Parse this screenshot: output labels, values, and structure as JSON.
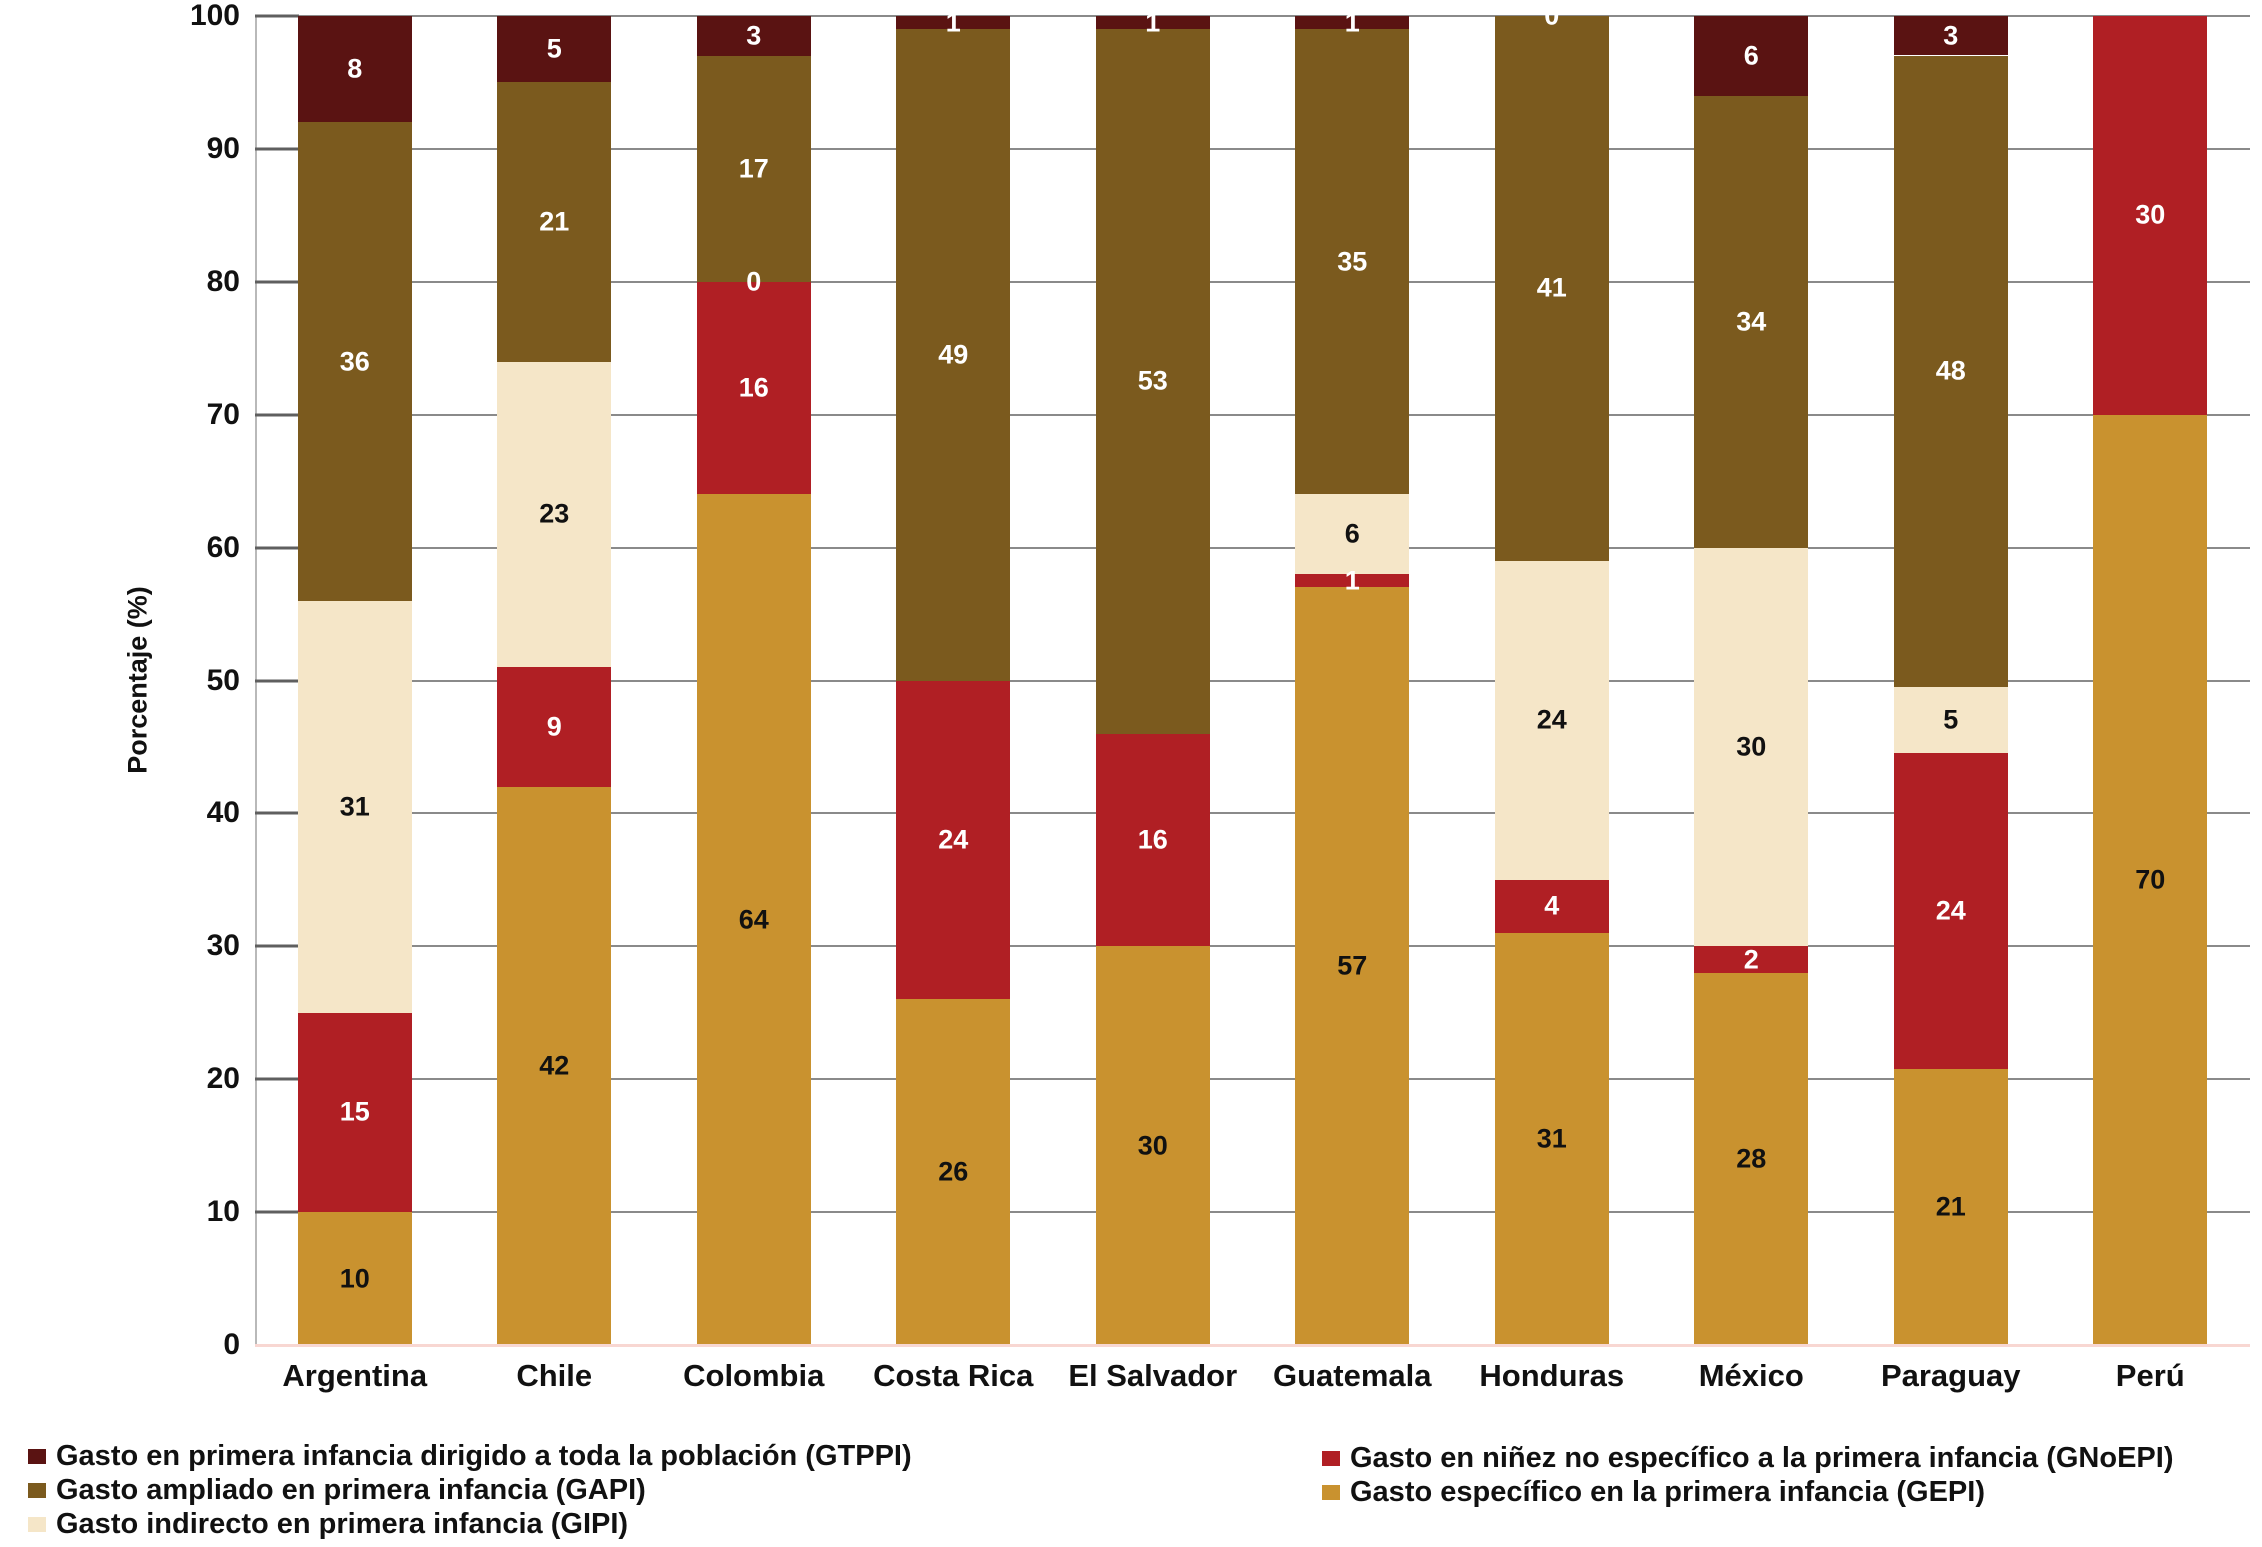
{
  "chart_data": {
    "type": "bar",
    "stacked": true,
    "orientation": "vertical",
    "title": "",
    "xlabel": "",
    "ylabel": "Porcentaje (%)",
    "ylim": [
      0,
      100
    ],
    "yticks": [
      0,
      10,
      20,
      30,
      40,
      50,
      60,
      70,
      80,
      90,
      100
    ],
    "grid": "horizontal",
    "legend_position": "bottom",
    "categories": [
      "Argentina",
      "Chile",
      "Colombia",
      "Costa Rica",
      "El Salvador",
      "Guatemala",
      "Honduras",
      "México",
      "Paraguay",
      "Perú"
    ],
    "stack_order_bottom_to_top": [
      "GEPI",
      "GNoEPI",
      "GIPI",
      "GAPI",
      "GTPPI"
    ],
    "series": [
      {
        "key": "GEPI",
        "name": "Gasto específico en la primera infancia (GEPI)",
        "color": "#C9922F",
        "label_color": "#111111",
        "values": [
          10,
          42,
          64,
          26,
          30,
          57,
          31,
          28,
          21,
          70
        ],
        "labels": [
          "10",
          "42",
          "64",
          "26",
          "30",
          "57",
          "31",
          "28",
          "21",
          "70"
        ]
      },
      {
        "key": "GNoEPI",
        "name": "Gasto en niñez no específico a la primera infancia (GNoEPI)",
        "color": "#B01F24",
        "label_color": "#ffffff",
        "values": [
          15,
          9,
          16,
          24,
          16,
          1,
          4,
          2,
          24,
          30
        ],
        "labels": [
          "15",
          "9",
          "16",
          "24",
          "16",
          "1",
          "4",
          "2",
          "24",
          "30"
        ]
      },
      {
        "key": "GIPI",
        "name": "Gasto indirecto en primera infancia (GIPI)",
        "color": "#F5E6C8",
        "label_color": "#111111",
        "values": [
          31,
          23,
          0,
          0,
          0,
          6,
          24,
          30,
          5,
          0
        ],
        "labels": [
          "31",
          "23",
          "0",
          "",
          "",
          "6",
          "24",
          "30",
          "5",
          ""
        ]
      },
      {
        "key": "GAPI",
        "name": "Gasto ampliado en primera infancia (GAPI)",
        "color": "#7B5A1E",
        "label_color": "#ffffff",
        "values": [
          36,
          21,
          17,
          49,
          53,
          35,
          41,
          34,
          48,
          0
        ],
        "labels": [
          "36",
          "21",
          "17",
          "49",
          "53",
          "35",
          "41",
          "34",
          "48",
          ""
        ]
      },
      {
        "key": "GTPPI",
        "name": "Gasto en primera infancia dirigido a toda la población (GTPPI)",
        "color": "#5A1312",
        "label_color": "#ffffff",
        "values": [
          8,
          5,
          3,
          1,
          1,
          1,
          0,
          6,
          3,
          0
        ],
        "labels": [
          "8",
          "5",
          "3",
          "1",
          "1",
          "1",
          "0",
          "6",
          "3",
          ""
        ]
      }
    ]
  },
  "legend": {
    "columns": [
      {
        "items": [
          {
            "key": "GTPPI",
            "swatch": "#5A1312",
            "text": "Gasto en primera infancia dirigido a toda la población (GTPPI)"
          },
          {
            "key": "GAPI",
            "swatch": "#7B5A1E",
            "text": "Gasto ampliado en primera infancia (GAPI)"
          },
          {
            "key": "GIPI",
            "swatch": "#F5E6C8",
            "text": "Gasto indirecto en primera infancia (GIPI)"
          }
        ]
      },
      {
        "items": [
          {
            "key": "GNoEPI",
            "swatch": "#B01F24",
            "text": "Gasto en niñez no específico a la primera infancia (GNoEPI)"
          },
          {
            "key": "GEPI",
            "swatch": "#C9922F",
            "text": "Gasto específico en la primera infancia (GEPI)"
          }
        ]
      }
    ]
  },
  "style": {
    "grid_color": "#8a8a8a",
    "axis_line_color": "#b9b9b9",
    "tick_color": "#5f5f5f",
    "zero_line_color": "#f8d7d2",
    "background": "#ffffff"
  }
}
